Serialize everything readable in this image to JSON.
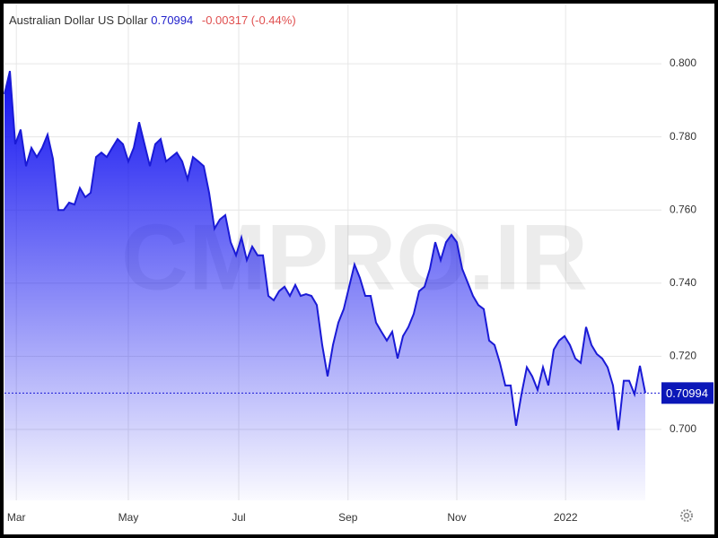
{
  "chart_data": {
    "type": "area",
    "title": "Australian Dollar US Dollar",
    "last_price": 0.70994,
    "change": "-0.00317 (-0.44%)",
    "watermark": "CMPRO.IR",
    "color": "#1a1ad6",
    "xlim": [
      0,
      122
    ],
    "xticks": [
      {
        "value": 2.2,
        "label": "Mar"
      },
      {
        "value": 23,
        "label": "May"
      },
      {
        "value": 43.5,
        "label": "Jul"
      },
      {
        "value": 63.8,
        "label": "Sep"
      },
      {
        "value": 84,
        "label": "Nov"
      },
      {
        "value": 104.2,
        "label": "2022"
      }
    ],
    "ylim": [
      0.6806,
      0.8162
    ],
    "yticks": [
      {
        "value": 0.7,
        "label": "0.700"
      },
      {
        "value": 0.72,
        "label": "0.720"
      },
      {
        "value": 0.74,
        "label": "0.740"
      },
      {
        "value": 0.76,
        "label": "0.760"
      },
      {
        "value": 0.78,
        "label": "0.780"
      },
      {
        "value": 0.8,
        "label": "0.800"
      }
    ],
    "grid": true,
    "values": [
      0.7917,
      0.798,
      0.778,
      0.782,
      0.772,
      0.777,
      0.7745,
      0.777,
      0.7806,
      0.774,
      0.76,
      0.76,
      0.762,
      0.7615,
      0.766,
      0.7635,
      0.7647,
      0.7745,
      0.7757,
      0.7745,
      0.777,
      0.7794,
      0.778,
      0.7733,
      0.777,
      0.784,
      0.778,
      0.772,
      0.778,
      0.7794,
      0.7733,
      0.7745,
      0.7757,
      0.7733,
      0.7684,
      0.7745,
      0.7733,
      0.772,
      0.7647,
      0.7549,
      0.7574,
      0.7586,
      0.7512,
      0.7476,
      0.7525,
      0.7463,
      0.75,
      0.7476,
      0.7476,
      0.7365,
      0.7353,
      0.7378,
      0.739,
      0.7365,
      0.7395,
      0.7365,
      0.737,
      0.7365,
      0.734,
      0.7231,
      0.7145,
      0.7231,
      0.7292,
      0.7329,
      0.739,
      0.7451,
      0.7414,
      0.7365,
      0.7365,
      0.7292,
      0.7267,
      0.7243,
      0.7267,
      0.7194,
      0.7255,
      0.728,
      0.7316,
      0.7378,
      0.739,
      0.7439,
      0.7512,
      0.7463,
      0.7512,
      0.7532,
      0.7512,
      0.7439,
      0.7402,
      0.7365,
      0.734,
      0.7329,
      0.7243,
      0.7231,
      0.7182,
      0.712,
      0.712,
      0.701,
      0.7096,
      0.717,
      0.7145,
      0.7108,
      0.717,
      0.712,
      0.7218,
      0.7243,
      0.7255,
      0.7231,
      0.7194,
      0.7182,
      0.728,
      0.7231,
      0.7206,
      0.7194,
      0.717,
      0.712,
      0.6998,
      0.7133,
      0.7133,
      0.7096,
      0.7174,
      0.70994
    ]
  }
}
